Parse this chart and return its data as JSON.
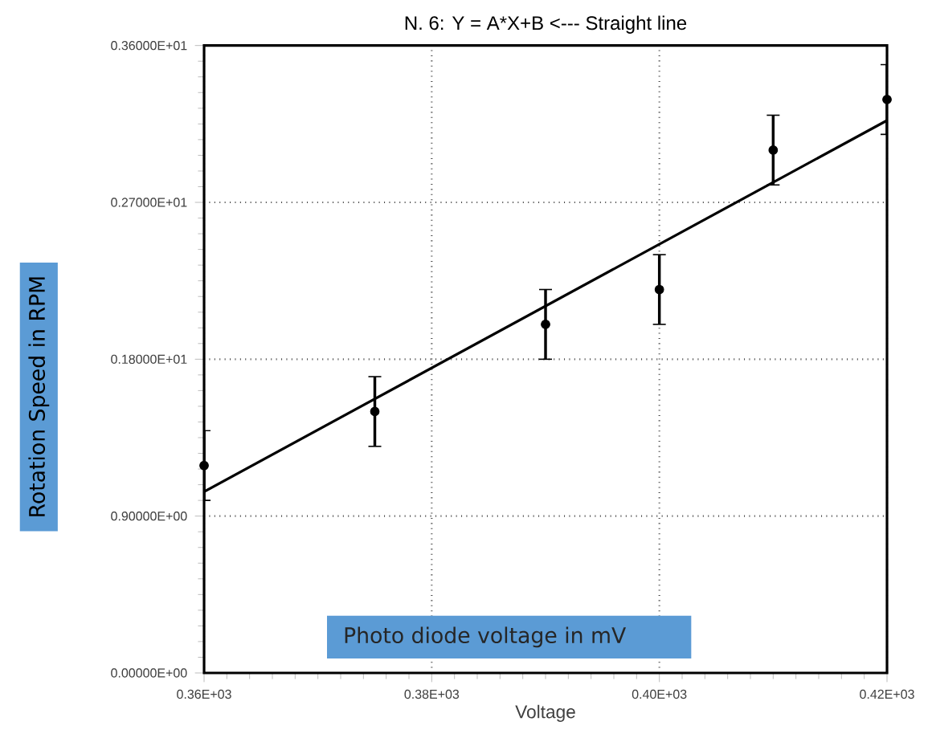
{
  "chart_data": {
    "type": "scatter",
    "title": "N.   6:   Y = A*X+B <--- Straight line",
    "xlabel": "Voltage",
    "ylabel": "Rotation Speed in RPM",
    "annotations": [
      "Photo diode voltage in mV"
    ],
    "series": [
      {
        "type": "scatter",
        "color": "#000000",
        "marker": "circle",
        "x": [
          360,
          375,
          390,
          400,
          410,
          420
        ],
        "values": [
          1.19,
          1.5,
          2.0,
          2.2,
          3.0,
          3.29
        ],
        "errors": [
          0.2,
          0.2,
          0.2,
          0.2,
          0.2,
          0.2
        ]
      },
      {
        "type": "line",
        "color": "#000000",
        "marker": "none",
        "line_style": "solid",
        "x": [
          360,
          420
        ],
        "values": [
          1.04,
          3.17
        ]
      }
    ],
    "xlim": [
      360,
      420
    ],
    "ylim": [
      0,
      3.6
    ],
    "xticks": [
      {
        "value": 360,
        "label": "0.36E+03"
      },
      {
        "value": 380,
        "label": "0.38E+03"
      },
      {
        "value": 400,
        "label": "0.40E+03"
      },
      {
        "value": 420,
        "label": "0.42E+03"
      }
    ],
    "yticks": [
      {
        "value": 0,
        "label": "0.00000E+00"
      },
      {
        "value": 0.9,
        "label": "0.90000E+00"
      },
      {
        "value": 1.8,
        "label": "0.18000E+01"
      },
      {
        "value": 2.7,
        "label": "0.27000E+01"
      },
      {
        "value": 3.6,
        "label": "0.36000E+01"
      }
    ],
    "grid": true
  }
}
